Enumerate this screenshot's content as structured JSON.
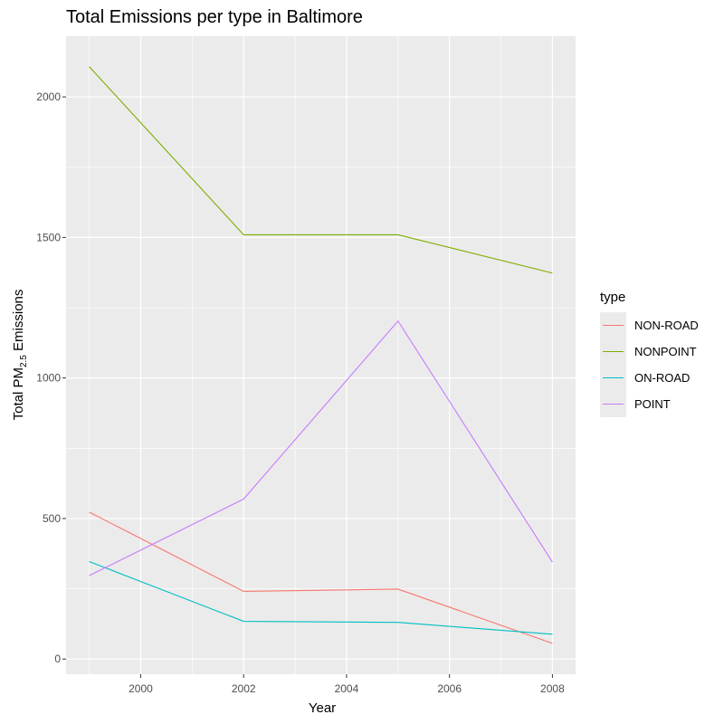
{
  "chart_data": {
    "type": "line",
    "title": "Total Emissions per type in Baltimore",
    "xlabel": "Year",
    "ylabel_main": "Total PM",
    "ylabel_sub": "2.5",
    "ylabel_tail": " Emissions",
    "x": [
      1999,
      2002,
      2005,
      2008
    ],
    "xlim": [
      1998.55,
      2008.45
    ],
    "ylim": [
      -54,
      2216
    ],
    "x_ticks": [
      2000,
      2002,
      2004,
      2006,
      2008
    ],
    "y_ticks": [
      0,
      500,
      1000,
      1500,
      2000
    ],
    "grid": true,
    "legend": {
      "title": "type",
      "placement": "right"
    },
    "series": [
      {
        "name": "NON-ROAD",
        "color": "#F8766D",
        "values": [
          522.9,
          240.8,
          248.9,
          55.8
        ]
      },
      {
        "name": "NONPOINT",
        "color": "#7CAE00",
        "values": [
          2107.6,
          1509.5,
          1509.5,
          1373.2
        ]
      },
      {
        "name": "ON-ROAD",
        "color": "#00BFC4",
        "values": [
          346.8,
          134.3,
          130.4,
          88.3
        ]
      },
      {
        "name": "POINT",
        "color": "#C77CFF",
        "values": [
          296.8,
          569.3,
          1202.5,
          344.98
        ]
      }
    ]
  },
  "colors": {
    "panel_bg": "#ebebeb",
    "grid": "#ffffff"
  }
}
